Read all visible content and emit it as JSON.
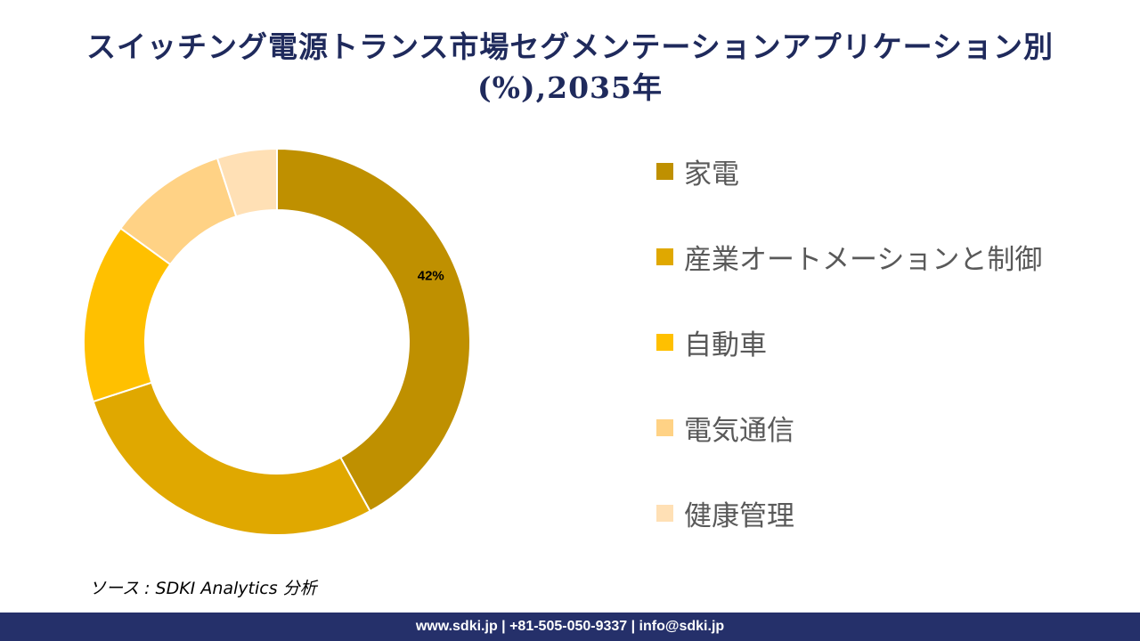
{
  "title_line1": "スイッチング電源トランス市場セグメンテーションアプリケーション別",
  "title_line2": "(%),2035年",
  "chart_data": {
    "type": "pie",
    "variant": "donut",
    "categories": [
      "家電",
      "産業オートメーションと制御",
      "自動車",
      "電気通信",
      "健康管理"
    ],
    "values": [
      42,
      28,
      15,
      10,
      5
    ],
    "unit": "%",
    "colors": [
      "#BF9000",
      "#E0A800",
      "#FFC000",
      "#FFD285",
      "#FFE0B5"
    ],
    "data_labels": [
      "42%",
      "",
      "",
      "",
      ""
    ],
    "legend_position": "right"
  },
  "source": "ソース : SDKI Analytics  分析",
  "footer": "www.sdki.jp | +81-505-050-9337 | info@sdki.jp"
}
